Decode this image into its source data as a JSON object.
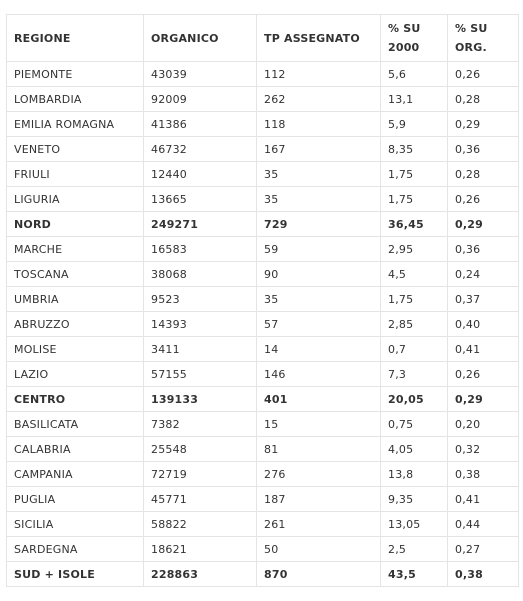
{
  "table": {
    "headers": [
      "REGIONE",
      "ORGANICO",
      "TP ASSEGNATO",
      "%  SU 2000",
      "% SU ORG."
    ],
    "rows": [
      {
        "cells": [
          "PIEMONTE",
          "43039",
          "112",
          "5,6",
          "0,26"
        ],
        "total": false
      },
      {
        "cells": [
          "LOMBARDIA",
          "92009",
          "262",
          "13,1",
          "0,28"
        ],
        "total": false
      },
      {
        "cells": [
          "EMILIA ROMAGNA",
          "41386",
          "118",
          "5,9",
          "0,29"
        ],
        "total": false
      },
      {
        "cells": [
          "VENETO",
          "46732",
          "167",
          "8,35",
          "0,36"
        ],
        "total": false
      },
      {
        "cells": [
          "FRIULI",
          "12440",
          "35",
          "1,75",
          "0,28"
        ],
        "total": false
      },
      {
        "cells": [
          "LIGURIA",
          "13665",
          "35",
          "1,75",
          "0,26"
        ],
        "total": false
      },
      {
        "cells": [
          "NORD",
          "249271",
          "729",
          "36,45",
          "0,29"
        ],
        "total": true
      },
      {
        "cells": [
          "MARCHE",
          "16583",
          "59",
          "2,95",
          "0,36"
        ],
        "total": false
      },
      {
        "cells": [
          "TOSCANA",
          "38068",
          "90",
          "4,5",
          "0,24"
        ],
        "total": false
      },
      {
        "cells": [
          "UMBRIA",
          "9523",
          "35",
          "1,75",
          "0,37"
        ],
        "total": false
      },
      {
        "cells": [
          "ABRUZZO",
          "14393",
          "57",
          "2,85",
          "0,40"
        ],
        "total": false
      },
      {
        "cells": [
          "MOLISE",
          "3411",
          "14",
          "0,7",
          "0,41"
        ],
        "total": false
      },
      {
        "cells": [
          "LAZIO",
          "57155",
          "146",
          "7,3",
          "0,26"
        ],
        "total": false
      },
      {
        "cells": [
          "CENTRO",
          "139133",
          "401",
          "20,05",
          "0,29"
        ],
        "total": true
      },
      {
        "cells": [
          "BASILICATA",
          "7382",
          "15",
          "0,75",
          "0,20"
        ],
        "total": false
      },
      {
        "cells": [
          "CALABRIA",
          "25548",
          "81",
          "4,05",
          "0,32"
        ],
        "total": false
      },
      {
        "cells": [
          "CAMPANIA",
          "72719",
          "276",
          "13,8",
          "0,38"
        ],
        "total": false
      },
      {
        "cells": [
          "PUGLIA",
          "45771",
          "187",
          "9,35",
          "0,41"
        ],
        "total": false
      },
      {
        "cells": [
          "SICILIA",
          "58822",
          "261",
          "13,05",
          "0,44"
        ],
        "total": false
      },
      {
        "cells": [
          "SARDEGNA",
          "18621",
          "50",
          "2,5",
          "0,27"
        ],
        "total": false
      },
      {
        "cells": [
          "SUD + ISOLE",
          "228863",
          "870",
          "43,5",
          "0,38"
        ],
        "total": true
      }
    ]
  }
}
